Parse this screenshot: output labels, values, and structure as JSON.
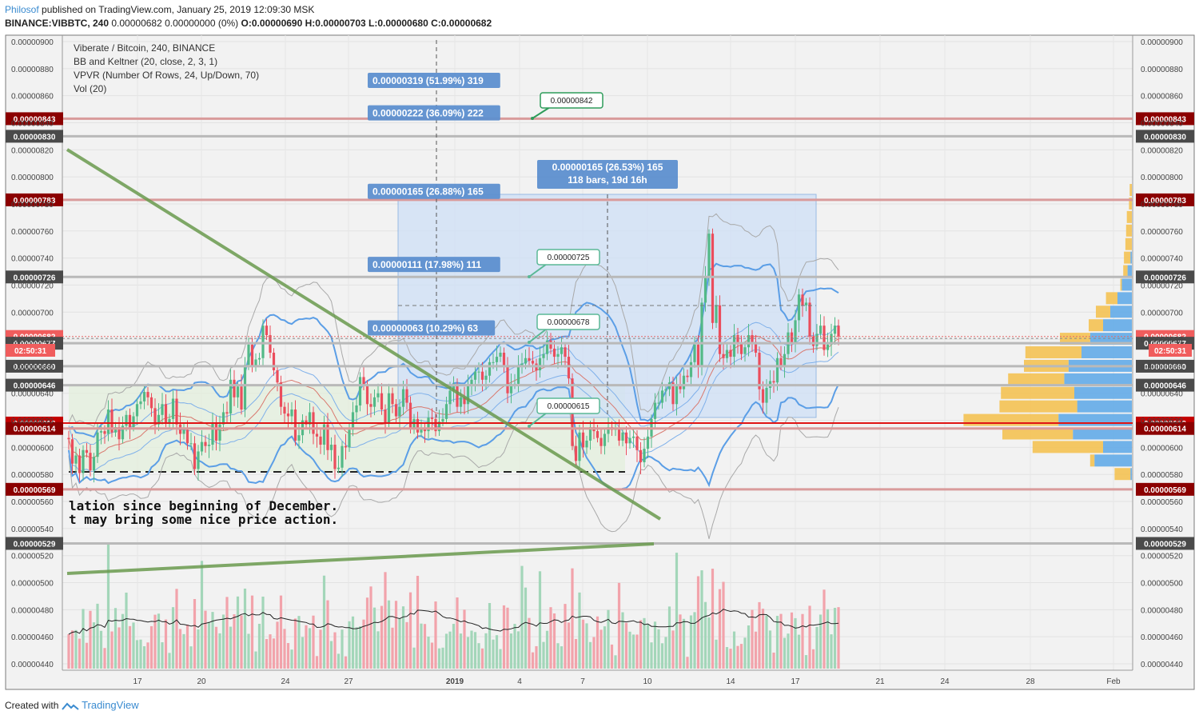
{
  "header": {
    "author": "Philosof",
    "published_text": "published on TradingView.com, January 25, 2019 12:09:30 MSK",
    "symbol": "BINANCE:VIBBTC, 240",
    "change": "0.00000682 0.00000000 (0%)",
    "ohlc_o": "O:0.00000690",
    "ohlc_h": "H:0.00000703",
    "ohlc_l": "L:0.00000680",
    "ohlc_c": "C:0.00000682"
  },
  "legend": [
    "Viberate / Bitcoin, 240, BINANCE",
    "BB and Keltner (20, close, 2, 3, 1)",
    "VPVR (Number Of Rows, 24, Up/Down, 70)",
    "Vol (20)"
  ],
  "annotation_text": [
    "lation since beginning of December.",
    "t may bring some nice price action."
  ],
  "footer": {
    "created_with": "Created with",
    "brand": "TradingView"
  },
  "colors": {
    "up": "#53b987",
    "down": "#eb4d5c",
    "vol_up": "#a3d6b9",
    "vol_down": "#f2a3ab",
    "bb_band": "#5b9ee6",
    "level_red": "#c9302c",
    "level_gray": "#9e9e9e",
    "trendline": "#6a9a4e",
    "box_fill": "#cfe0f6",
    "vp_up": "#5aa7e8",
    "vp_down": "#f5c04a"
  },
  "chart_data": {
    "type": "candlestick",
    "symbol": "Viberate / Bitcoin",
    "exchange": "BINANCE",
    "interval": "240",
    "y_range": [
      4.3e-06,
      9.1e-06
    ],
    "y_ticks": [
      "0.00000900",
      "0.00000880",
      "0.00000860",
      "0.00000840",
      "0.00000820",
      "0.00000800",
      "0.00000780",
      "0.00000760",
      "0.00000740",
      "0.00000720",
      "0.00000700",
      "0.00000680",
      "0.00000660",
      "0.00000640",
      "0.00000620",
      "0.00000600",
      "0.00000580",
      "0.00000560",
      "0.00000540",
      "0.00000520",
      "0.00000500",
      "0.00000480",
      "0.00000460",
      "0.00000440"
    ],
    "x_ticks": [
      "17",
      "20",
      "24",
      "27",
      "2019",
      "4",
      "7",
      "10",
      "14",
      "17",
      "21",
      "24",
      "28",
      "Feb"
    ],
    "price_levels": [
      {
        "value": "0.00000843",
        "kind": "red"
      },
      {
        "value": "0.00000830",
        "kind": "gray"
      },
      {
        "value": "0.00000783",
        "kind": "red"
      },
      {
        "value": "0.00000726",
        "kind": "gray"
      },
      {
        "value": "0.00000682",
        "kind": "current"
      },
      {
        "value": "0.00000677",
        "kind": "gray"
      },
      {
        "value": "0.00000660",
        "kind": "gray"
      },
      {
        "value": "0.00000646",
        "kind": "gray"
      },
      {
        "value": "0.00000618",
        "kind": "red-bold"
      },
      {
        "value": "0.00000614",
        "kind": "red"
      },
      {
        "value": "0.00000569",
        "kind": "red"
      },
      {
        "value": "0.00000529",
        "kind": "gray"
      }
    ],
    "countdown": "02:50:31",
    "measure_labels": [
      {
        "text": "0.00000319 (51.99%) 319",
        "price": 8.71e-06
      },
      {
        "text": "0.00000222 (36.09%) 222",
        "price": 8.47e-06
      },
      {
        "text": "0.00000165 (26.88%) 165",
        "price": 7.89e-06
      },
      {
        "text": "0.00000111 (17.98%) 111",
        "price": 7.35e-06
      },
      {
        "text": "0.00000063 (10.29%) 63",
        "price": 6.88e-06
      }
    ],
    "range_box": {
      "label_1": "0.00000165 (26.53%) 165",
      "label_2": "118 bars, 19d 16h"
    },
    "callouts": [
      "0.00000842",
      "0.00000725",
      "0.00000678",
      "0.00000615"
    ],
    "candles": [
      [
        607,
        606
      ],
      [
        606,
        588
      ],
      [
        588,
        594
      ],
      [
        594,
        581
      ],
      [
        581,
        598
      ],
      [
        598,
        596
      ],
      [
        596,
        583
      ],
      [
        583,
        593
      ],
      [
        593,
        611
      ],
      [
        611,
        612
      ],
      [
        612,
        610
      ],
      [
        610,
        628
      ],
      [
        628,
        611
      ],
      [
        611,
        615
      ],
      [
        615,
        606
      ],
      [
        606,
        616
      ],
      [
        616,
        624
      ],
      [
        624,
        615
      ],
      [
        615,
        623
      ],
      [
        623,
        632
      ],
      [
        632,
        634
      ],
      [
        634,
        641
      ],
      [
        641,
        637
      ],
      [
        637,
        629
      ],
      [
        629,
        617
      ],
      [
        617,
        624
      ],
      [
        624,
        632
      ],
      [
        632,
        618
      ],
      [
        618,
        621
      ],
      [
        621,
        636
      ],
      [
        636,
        617
      ],
      [
        617,
        610
      ],
      [
        610,
        613
      ],
      [
        613,
        603
      ],
      [
        603,
        603
      ],
      [
        603,
        584
      ],
      [
        584,
        597
      ],
      [
        597,
        604
      ],
      [
        604,
        601
      ],
      [
        601,
        602
      ],
      [
        602,
        618
      ],
      [
        618,
        605
      ],
      [
        605,
        617
      ],
      [
        617,
        626
      ],
      [
        626,
        625
      ],
      [
        625,
        650
      ],
      [
        650,
        637
      ],
      [
        637,
        645
      ],
      [
        645,
        628
      ],
      [
        628,
        661
      ],
      [
        661,
        676
      ],
      [
        676,
        660
      ],
      [
        660,
        665
      ],
      [
        665,
        666
      ],
      [
        666,
        690
      ],
      [
        690,
        683
      ],
      [
        683,
        670
      ],
      [
        670,
        657
      ],
      [
        657,
        648
      ],
      [
        648,
        630
      ],
      [
        630,
        625
      ],
      [
        625,
        623
      ],
      [
        623,
        628
      ],
      [
        628,
        605
      ],
      [
        605,
        609
      ],
      [
        609,
        620
      ],
      [
        620,
        617
      ],
      [
        617,
        626
      ],
      [
        626,
        610
      ],
      [
        610,
        608
      ],
      [
        608,
        602
      ],
      [
        602,
        617
      ],
      [
        617,
        598
      ],
      [
        598,
        602
      ],
      [
        602,
        584
      ],
      [
        584,
        585
      ],
      [
        585,
        601
      ],
      [
        601,
        600
      ],
      [
        600,
        613
      ],
      [
        613,
        626
      ],
      [
        626,
        631
      ],
      [
        631,
        652
      ],
      [
        652,
        646
      ],
      [
        646,
        632
      ],
      [
        632,
        630
      ],
      [
        630,
        637
      ],
      [
        637,
        640
      ],
      [
        640,
        628
      ],
      [
        628,
        618
      ],
      [
        618,
        640
      ],
      [
        640,
        632
      ],
      [
        632,
        623
      ],
      [
        623,
        630
      ],
      [
        630,
        643
      ],
      [
        643,
        633
      ],
      [
        633,
        614
      ],
      [
        614,
        621
      ],
      [
        621,
        611
      ],
      [
        611,
        614
      ],
      [
        614,
        612
      ],
      [
        612,
        622
      ],
      [
        622,
        621
      ],
      [
        621,
        612
      ],
      [
        612,
        619
      ],
      [
        619,
        621
      ],
      [
        621,
        632
      ],
      [
        632,
        642
      ],
      [
        642,
        647
      ],
      [
        647,
        630
      ],
      [
        630,
        637
      ],
      [
        637,
        632
      ],
      [
        632,
        646
      ],
      [
        646,
        650
      ],
      [
        650,
        656
      ],
      [
        656,
        656
      ],
      [
        656,
        650
      ],
      [
        650,
        653
      ],
      [
        653,
        663
      ],
      [
        663,
        663
      ],
      [
        663,
        667
      ],
      [
        667,
        670
      ],
      [
        670,
        660
      ],
      [
        660,
        640
      ],
      [
        640,
        647
      ],
      [
        647,
        647
      ],
      [
        647,
        660
      ],
      [
        660,
        662
      ],
      [
        662,
        666
      ],
      [
        666,
        664
      ],
      [
        664,
        662
      ],
      [
        662,
        657
      ],
      [
        657,
        666
      ],
      [
        666,
        669
      ],
      [
        669,
        679
      ],
      [
        679,
        673
      ],
      [
        673,
        667
      ],
      [
        667,
        669
      ],
      [
        669,
        674
      ],
      [
        674,
        667
      ],
      [
        667,
        651
      ],
      [
        651,
        601
      ],
      [
        601,
        590
      ],
      [
        590,
        611
      ],
      [
        611,
        600
      ],
      [
        600,
        605
      ],
      [
        605,
        615
      ],
      [
        615,
        612
      ],
      [
        612,
        607
      ],
      [
        607,
        601
      ],
      [
        601,
        610
      ],
      [
        610,
        615
      ],
      [
        615,
        613
      ],
      [
        613,
        614
      ],
      [
        614,
        605
      ],
      [
        605,
        611
      ],
      [
        611,
        603
      ],
      [
        603,
        607
      ],
      [
        607,
        608
      ],
      [
        608,
        598
      ],
      [
        598,
        589
      ],
      [
        589,
        599
      ],
      [
        599,
        608
      ],
      [
        608,
        621
      ],
      [
        621,
        633
      ],
      [
        633,
        633
      ],
      [
        633,
        642
      ],
      [
        642,
        643
      ],
      [
        643,
        648
      ],
      [
        648,
        632
      ],
      [
        632,
        646
      ],
      [
        646,
        643
      ],
      [
        643,
        653
      ],
      [
        653,
        652
      ],
      [
        652,
        663
      ],
      [
        663,
        676
      ],
      [
        676,
        660
      ],
      [
        660,
        707
      ],
      [
        707,
        726
      ],
      [
        726,
        758
      ],
      [
        758,
        692
      ],
      [
        692,
        705
      ],
      [
        705,
        669
      ],
      [
        669,
        666
      ],
      [
        666,
        672
      ],
      [
        672,
        667
      ],
      [
        667,
        683
      ],
      [
        683,
        677
      ],
      [
        677,
        669
      ],
      [
        669,
        674
      ],
      [
        674,
        683
      ],
      [
        683,
        678
      ],
      [
        678,
        670
      ],
      [
        670,
        643
      ],
      [
        643,
        633
      ],
      [
        633,
        644
      ],
      [
        644,
        649
      ],
      [
        649,
        648
      ],
      [
        648,
        666
      ],
      [
        666,
        660
      ],
      [
        660,
        669
      ],
      [
        669,
        685
      ],
      [
        685,
        677
      ],
      [
        677,
        694
      ],
      [
        694,
        713
      ],
      [
        713,
        705
      ],
      [
        705,
        707
      ],
      [
        707,
        682
      ],
      [
        682,
        675
      ],
      [
        675,
        684
      ],
      [
        684,
        690
      ],
      [
        690,
        672
      ],
      [
        672,
        676
      ],
      [
        676,
        684
      ],
      [
        684,
        690
      ],
      [
        690,
        682
      ]
    ],
    "volume_profile": [
      {
        "price": 7.9e-06,
        "up": 3,
        "down": 0
      },
      {
        "price": 7.8e-06,
        "up": 4,
        "down": 0
      },
      {
        "price": 7.7e-06,
        "up": 7,
        "down": 0
      },
      {
        "price": 7.6e-06,
        "up": 8,
        "down": 0
      },
      {
        "price": 7.5e-06,
        "up": 9,
        "down": 0
      },
      {
        "price": 7.4e-06,
        "up": 11,
        "down": 2
      },
      {
        "price": 7.3e-06,
        "up": 12,
        "down": 6
      },
      {
        "price": 7.2e-06,
        "up": 16,
        "down": 14
      },
      {
        "price": 7.1e-06,
        "up": 36,
        "down": 20
      },
      {
        "price": 7e-06,
        "up": 50,
        "down": 30
      },
      {
        "price": 6.9e-06,
        "up": 60,
        "down": 40
      },
      {
        "price": 6.8e-06,
        "up": 100,
        "down": 58
      },
      {
        "price": 6.7e-06,
        "up": 148,
        "down": 70
      },
      {
        "price": 6.6e-06,
        "up": 150,
        "down": 88
      },
      {
        "price": 6.5e-06,
        "up": 172,
        "down": 94
      },
      {
        "price": 6.4e-06,
        "up": 182,
        "down": 80
      },
      {
        "price": 6.3e-06,
        "up": 184,
        "down": 76
      },
      {
        "price": 6.2e-06,
        "up": 234,
        "down": 102
      },
      {
        "price": 6.1e-06,
        "up": 180,
        "down": 82
      },
      {
        "price": 6e-06,
        "up": 138,
        "down": 40
      },
      {
        "price": 5.9e-06,
        "up": 58,
        "down": 52
      },
      {
        "price": 5.8e-06,
        "up": 24,
        "down": 2
      },
      {
        "price": 5.7e-06,
        "up": 0,
        "down": 0
      }
    ]
  }
}
